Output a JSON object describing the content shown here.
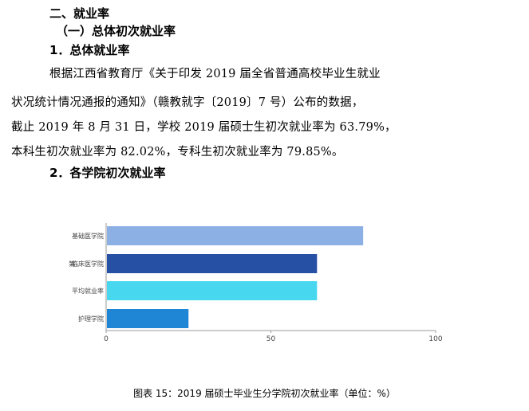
{
  "section_heading": "二、就业率",
  "subsection_heading": "（一）总体初次就业率",
  "item1_heading": "1．总体就业率",
  "paragraph_lines": [
    "根据江西省教育厅《关于印发 2019 届全省普通高校毕业生就业",
    "状况统计情况通报的通知》（赣教就字〔2019〕7 号）公布的数据，",
    "截止 2019 年 8 月 31 日，学校 2019 届硕士生初次就业率为 63.79%，",
    "本科生初次就业率为 82.02%，专科生初次就业率为 79.85%。"
  ],
  "item2_heading": "2．各学院初次就业率",
  "chart_prefix_label": "第",
  "chart_data": {
    "type": "bar",
    "orientation": "horizontal",
    "categories": [
      "基础医学院",
      "临床医学院",
      "平均就业率",
      "护理学院"
    ],
    "values": [
      78,
      64,
      64,
      25
    ],
    "colors": [
      "#8db0e4",
      "#2550a3",
      "#47d8ef",
      "#1e86d4"
    ],
    "xlim": [
      0,
      100
    ],
    "xticks": [
      0,
      50,
      100
    ],
    "grid": false,
    "legend": "none"
  },
  "caption": "图表 15：2019 届硕士毕业生分学院初次就业率（单位：%）"
}
